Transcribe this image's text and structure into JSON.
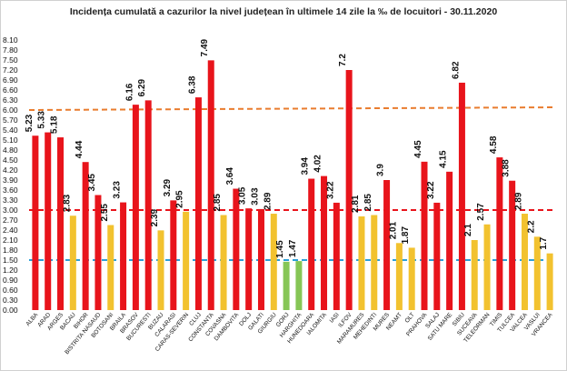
{
  "chart_data": {
    "type": "bar",
    "title": "Incidența cumulată a cazurilor la nivel județean în ultimele 14 zile la ‰ de locuitori - 30.11.2020",
    "xlabel": "",
    "ylabel": "",
    "ylim": [
      0,
      8.1
    ],
    "y_ticks": [
      "0.00",
      "0.30",
      "0.60",
      "0.90",
      "1.20",
      "1.50",
      "1.80",
      "2.10",
      "2.40",
      "2.70",
      "3.00",
      "3.30",
      "3.60",
      "3.90",
      "4.20",
      "4.50",
      "4.80",
      "5.10",
      "5.40",
      "5.70",
      "6.00",
      "6.30",
      "6.60",
      "6.90",
      "7.20",
      "7.50",
      "7.80",
      "8.10"
    ],
    "grid": false,
    "categories": [
      "ALBA",
      "ARAD",
      "ARGES",
      "BACAU",
      "BIHOR",
      "BISTRITA NASAUD",
      "BOTOSANI",
      "BRAILA",
      "BRASOV",
      "BUCURESTI",
      "BUZAU",
      "CALARASI",
      "CARAS-SEVERIN",
      "CLUJ",
      "CONSTANTA",
      "COVASNA",
      "DAMBOVITA",
      "DOLJ",
      "GALATI",
      "GIURGIU",
      "GORJ",
      "HARGHITA",
      "HUNEDOARA",
      "IALOMITA",
      "IASI",
      "ILFOV",
      "MARAMURES",
      "MEHEDINTI",
      "MURES",
      "NEAMT",
      "OLT",
      "PRAHOVA",
      "SALAJ",
      "SATU MARE",
      "SIBIU",
      "SUCEAVA",
      "TELEORMAN",
      "TIMIS",
      "TULCEA",
      "VALCEA",
      "VASLUI",
      "VRANCEA"
    ],
    "values": [
      5.23,
      5.33,
      5.18,
      2.83,
      4.44,
      3.45,
      2.55,
      3.23,
      6.16,
      6.29,
      2.39,
      3.29,
      2.95,
      6.38,
      7.49,
      2.85,
      3.64,
      3.05,
      3.03,
      2.89,
      1.45,
      1.47,
      3.94,
      4.02,
      3.22,
      7.2,
      2.81,
      2.85,
      3.9,
      2.01,
      1.87,
      4.45,
      3.22,
      4.15,
      6.82,
      2.1,
      2.57,
      4.58,
      3.88,
      2.89,
      2.2,
      1.7
    ],
    "value_labels": [
      "5.23",
      "5.33",
      "5.18",
      "2.83",
      "4.44",
      "3.45",
      "2.55",
      "3.23",
      "6.16",
      "6.29",
      "2.39",
      "3.29",
      "2.95",
      "6.38",
      "7.49",
      "2.85",
      "3.64",
      "3.05",
      "3.03",
      "2.89",
      "1.45",
      "1.47",
      "3.94",
      "4.02",
      "3.22",
      "7.2",
      "2.81",
      "2.85",
      "3.9",
      "2.01",
      "1.87",
      "4.45",
      "3.22",
      "4.15",
      "6.82",
      "2.1",
      "2.57",
      "4.58",
      "3.88",
      "2.89",
      "2.2",
      "1.7"
    ],
    "colors": {
      "red": "#e8141b",
      "yellow": "#f2c22f",
      "green": "#86c656",
      "threshold_high": "#e97c2e",
      "threshold_mid": "#e8141b",
      "threshold_low": "#2a9fd8"
    },
    "thresholds": [
      6.0,
      3.0,
      1.5
    ]
  }
}
